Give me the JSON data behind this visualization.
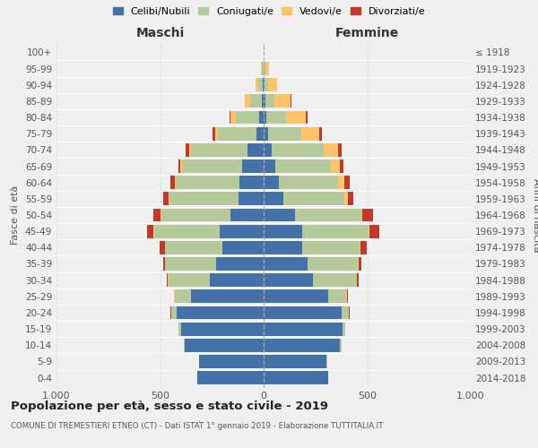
{
  "age_groups": [
    "0-4",
    "5-9",
    "10-14",
    "15-19",
    "20-24",
    "25-29",
    "30-34",
    "35-39",
    "40-44",
    "45-49",
    "50-54",
    "55-59",
    "60-64",
    "65-69",
    "70-74",
    "75-79",
    "80-84",
    "85-89",
    "90-94",
    "95-99",
    "100+"
  ],
  "birth_years": [
    "2014-2018",
    "2009-2013",
    "2004-2008",
    "1999-2003",
    "1994-1998",
    "1989-1993",
    "1984-1988",
    "1979-1983",
    "1974-1978",
    "1969-1973",
    "1964-1968",
    "1959-1963",
    "1954-1958",
    "1949-1953",
    "1944-1948",
    "1939-1943",
    "1934-1938",
    "1929-1933",
    "1924-1928",
    "1919-1923",
    "≤ 1918"
  ],
  "maschi": {
    "celibi": [
      320,
      310,
      380,
      400,
      420,
      350,
      260,
      230,
      200,
      210,
      160,
      120,
      115,
      105,
      80,
      35,
      20,
      10,
      5,
      2,
      0
    ],
    "coniugati": [
      0,
      2,
      5,
      10,
      25,
      80,
      200,
      245,
      275,
      320,
      335,
      335,
      310,
      290,
      270,
      185,
      115,
      55,
      20,
      5,
      0
    ],
    "vedovi": [
      0,
      0,
      0,
      0,
      2,
      2,
      2,
      2,
      2,
      2,
      2,
      3,
      5,
      8,
      10,
      15,
      25,
      25,
      15,
      5,
      0
    ],
    "divorziati": [
      0,
      0,
      0,
      0,
      2,
      3,
      5,
      10,
      25,
      30,
      35,
      25,
      20,
      10,
      15,
      10,
      5,
      0,
      0,
      0,
      0
    ]
  },
  "femmine": {
    "nubili": [
      310,
      305,
      370,
      380,
      375,
      310,
      240,
      210,
      185,
      185,
      150,
      95,
      75,
      55,
      40,
      20,
      15,
      8,
      5,
      2,
      0
    ],
    "coniugate": [
      0,
      2,
      5,
      12,
      35,
      90,
      210,
      245,
      280,
      320,
      320,
      295,
      285,
      270,
      250,
      160,
      95,
      45,
      15,
      5,
      0
    ],
    "vedove": [
      0,
      0,
      0,
      0,
      2,
      2,
      2,
      2,
      3,
      5,
      8,
      15,
      30,
      45,
      70,
      90,
      95,
      75,
      45,
      20,
      2
    ],
    "divorziate": [
      0,
      0,
      0,
      0,
      2,
      3,
      5,
      15,
      30,
      50,
      50,
      30,
      25,
      15,
      15,
      10,
      8,
      5,
      2,
      0,
      0
    ]
  },
  "colors": {
    "celibi": "#4472a8",
    "coniugati": "#b5c99a",
    "vedovi": "#ffc46b",
    "divorziati": "#c0392b"
  },
  "legend_labels": [
    "Celibi/Nubili",
    "Coniugati/e",
    "Vedovi/e",
    "Divorziati/e"
  ],
  "title": "Popolazione per età, sesso e stato civile - 2019",
  "subtitle": "COMUNE DI TREMESTIERI ETNEO (CT) - Dati ISTAT 1° gennaio 2019 - Elaborazione TUTTITALIA.IT",
  "xlabel_left": "Maschi",
  "xlabel_right": "Femmine",
  "ylabel_left": "Fasce di età",
  "ylabel_right": "Anni di nascita",
  "xlim": 1000,
  "background_color": "#f0f0f0"
}
